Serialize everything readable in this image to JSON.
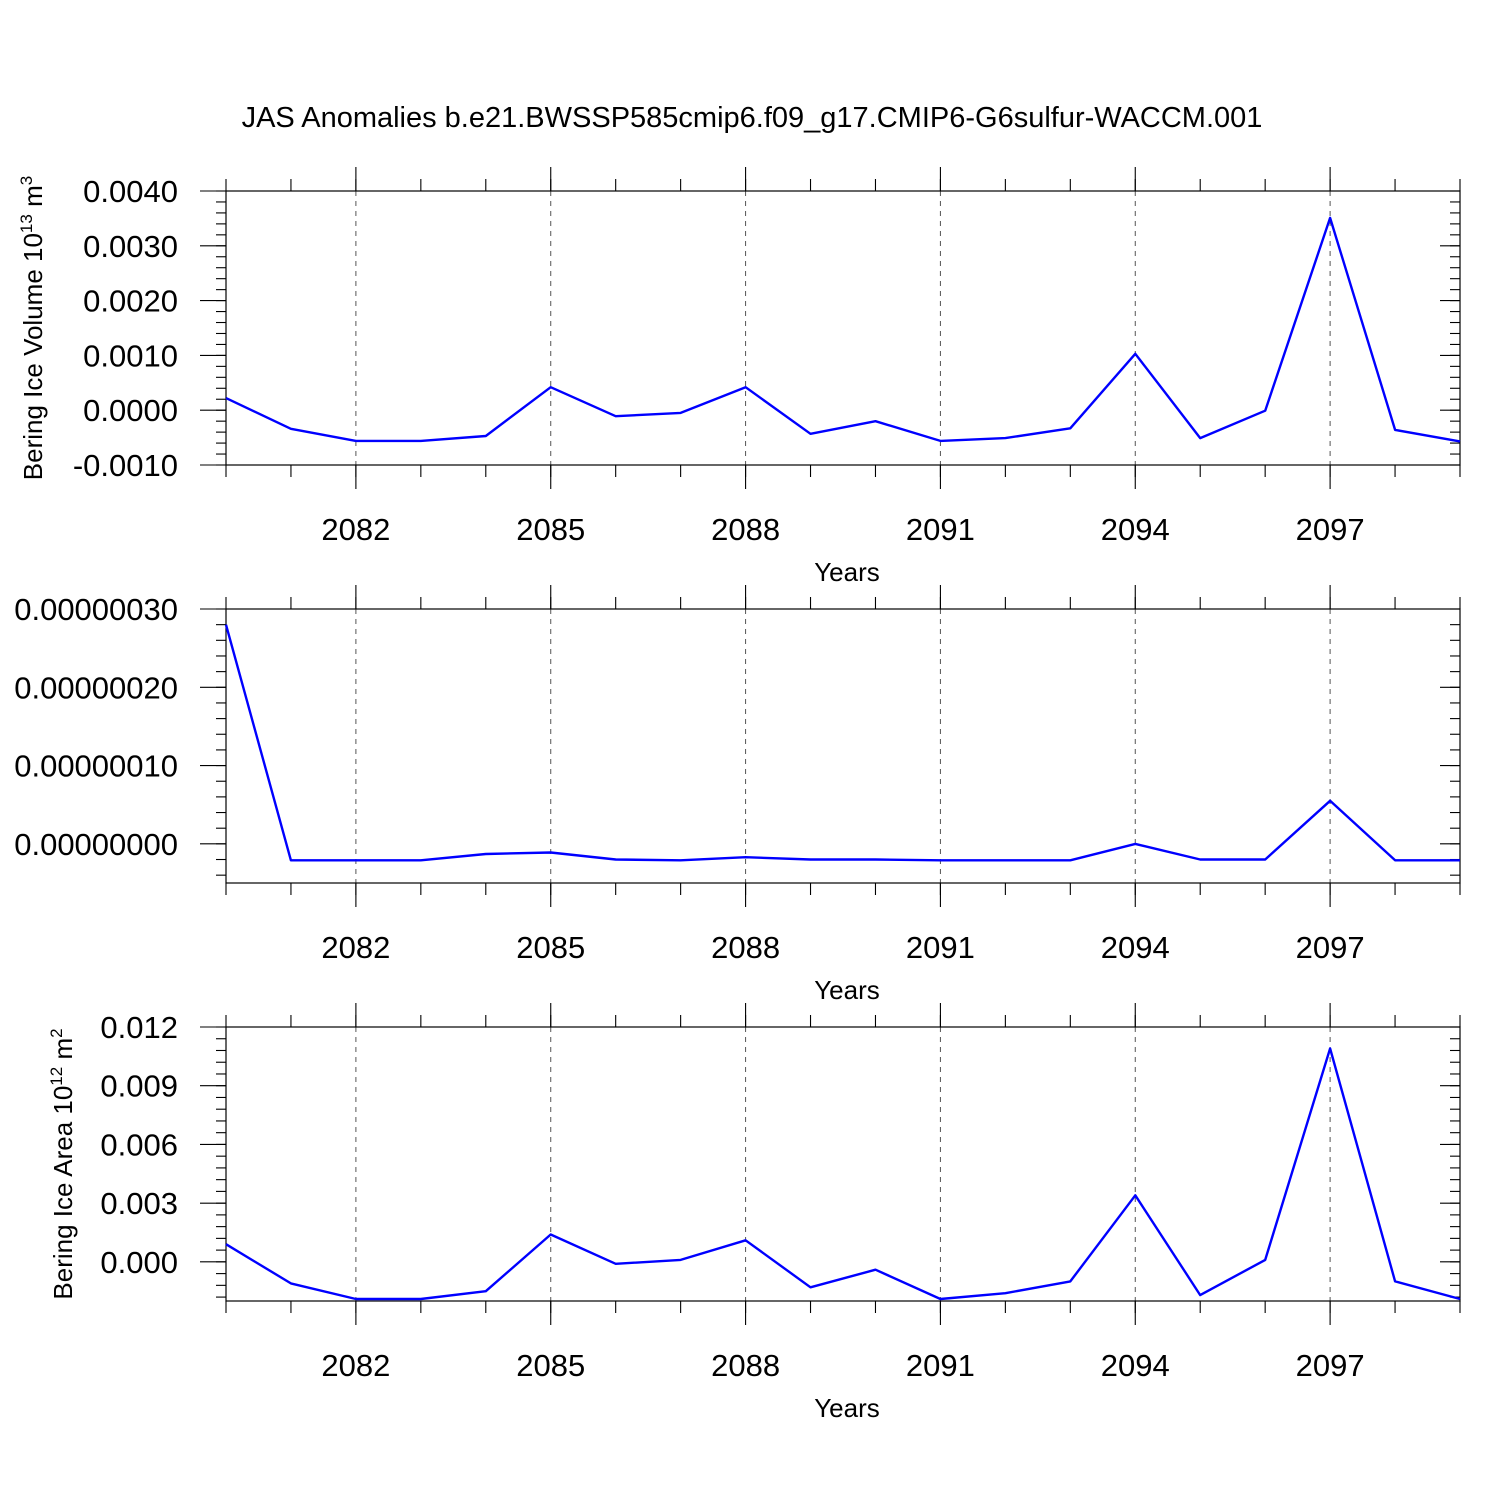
{
  "title": "JAS Anomalies b.e21.BWSSP585cmip6.f09_g17.CMIP6-G6sulfur-WACCM.001",
  "colors": {
    "series": "#0000ff",
    "axes": "#000000",
    "grid": "#555555",
    "background": "#ffffff"
  },
  "chart_data": [
    {
      "type": "line",
      "title": "",
      "xlabel": "Years",
      "ylabel": "Bering Ice Volume 10",
      "ylabel_exp": "13",
      "ylabel_unit": " m",
      "ylabel_unit_exp": "3",
      "xlim": [
        2080,
        2099
      ],
      "ylim": [
        -0.001,
        0.004
      ],
      "xticks": [
        2082,
        2085,
        2088,
        2091,
        2094,
        2097
      ],
      "xtick_labels": [
        "2082",
        "2085",
        "2088",
        "2091",
        "2094",
        "2097"
      ],
      "yticks": [
        -0.001,
        0,
        0.001,
        0.002,
        0.003,
        0.004
      ],
      "ytick_labels": [
        "-0.0010",
        "0.0000",
        "0.0010",
        "0.0020",
        "0.0030",
        "0.0040"
      ],
      "grid": "vertical dashed at major x ticks",
      "x": [
        2080,
        2081,
        2082,
        2083,
        2084,
        2085,
        2086,
        2087,
        2088,
        2089,
        2090,
        2091,
        2092,
        2093,
        2094,
        2095,
        2096,
        2097,
        2098,
        2099
      ],
      "series": [
        {
          "values": [
            0.00022,
            -0.00034,
            -0.00056,
            -0.00056,
            -0.00047,
            0.00042,
            -0.00011,
            -5e-05,
            0.00042,
            -0.00043,
            -0.0002,
            -0.00056,
            -0.00051,
            -0.00033,
            0.00103,
            -0.00051,
            -1e-05,
            0.00351,
            -0.00036,
            -0.00057
          ]
        }
      ]
    },
    {
      "type": "line",
      "title": "",
      "xlabel": "Years",
      "ylabel": "",
      "xlim": [
        2080,
        2099
      ],
      "ylim": [
        -5e-08,
        3e-07
      ],
      "xticks": [
        2082,
        2085,
        2088,
        2091,
        2094,
        2097
      ],
      "xtick_labels": [
        "2082",
        "2085",
        "2088",
        "2091",
        "2094",
        "2097"
      ],
      "yticks": [
        0,
        1e-07,
        2e-07,
        3e-07
      ],
      "ytick_labels": [
        "0.00000000",
        "0.00000010",
        "0.00000020",
        "0.00000030"
      ],
      "grid": "vertical dashed at major x ticks",
      "x": [
        2080,
        2081,
        2082,
        2083,
        2084,
        2085,
        2086,
        2087,
        2088,
        2089,
        2090,
        2091,
        2092,
        2093,
        2094,
        2095,
        2096,
        2097,
        2098,
        2099
      ],
      "series": [
        {
          "values": [
            2.8e-07,
            -2.1e-08,
            -2.1e-08,
            -2.1e-08,
            -1.3e-08,
            -1.1e-08,
            -2e-08,
            -2.1e-08,
            -1.7e-08,
            -2e-08,
            -2e-08,
            -2.1e-08,
            -2.1e-08,
            -2.1e-08,
            0.0,
            -2e-08,
            -2e-08,
            5.5e-08,
            -2.1e-08,
            -2.1e-08
          ]
        }
      ]
    },
    {
      "type": "line",
      "title": "",
      "xlabel": "Years",
      "ylabel": "Bering Ice Area 10",
      "ylabel_exp": "12",
      "ylabel_unit": " m",
      "ylabel_unit_exp": "2",
      "xlim": [
        2080,
        2099
      ],
      "ylim": [
        -0.002,
        0.012
      ],
      "xticks": [
        2082,
        2085,
        2088,
        2091,
        2094,
        2097
      ],
      "xtick_labels": [
        "2082",
        "2085",
        "2088",
        "2091",
        "2094",
        "2097"
      ],
      "yticks": [
        0,
        0.003,
        0.006,
        0.009,
        0.012
      ],
      "ytick_labels": [
        "0.000",
        "0.003",
        "0.006",
        "0.009",
        "0.012"
      ],
      "grid": "vertical dashed at major x ticks",
      "x": [
        2080,
        2081,
        2082,
        2083,
        2084,
        2085,
        2086,
        2087,
        2088,
        2089,
        2090,
        2091,
        2092,
        2093,
        2094,
        2095,
        2096,
        2097,
        2098,
        2099
      ],
      "series": [
        {
          "values": [
            0.0009,
            -0.0011,
            -0.0019,
            -0.0019,
            -0.0015,
            0.0014,
            -0.0001,
            0.0001,
            0.0011,
            -0.0013,
            -0.0004,
            -0.0019,
            -0.0016,
            -0.001,
            0.0034,
            -0.0017,
            0.0001,
            0.0109,
            -0.001,
            -0.0019
          ]
        }
      ]
    }
  ]
}
